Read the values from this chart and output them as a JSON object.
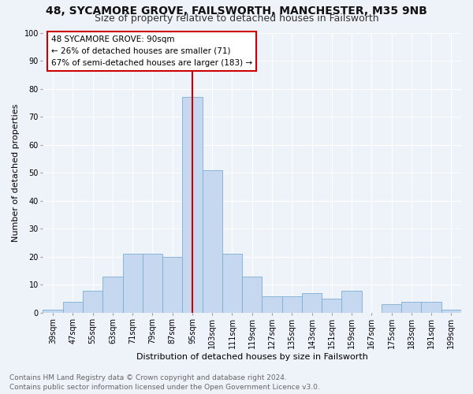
{
  "title1": "48, SYCAMORE GROVE, FAILSWORTH, MANCHESTER, M35 9NB",
  "title2": "Size of property relative to detached houses in Failsworth",
  "xlabel": "Distribution of detached houses by size in Failsworth",
  "ylabel": "Number of detached properties",
  "categories": [
    "39sqm",
    "47sqm",
    "55sqm",
    "63sqm",
    "71sqm",
    "79sqm",
    "87sqm",
    "95sqm",
    "103sqm",
    "111sqm",
    "119sqm",
    "127sqm",
    "135sqm",
    "143sqm",
    "151sqm",
    "159sqm",
    "167sqm",
    "175sqm",
    "183sqm",
    "191sqm",
    "199sqm"
  ],
  "values": [
    1,
    4,
    8,
    13,
    21,
    21,
    20,
    77,
    51,
    21,
    13,
    6,
    6,
    7,
    5,
    8,
    0,
    3,
    4,
    4,
    1
  ],
  "bar_color": "#c5d8ef",
  "bar_edge_color": "#7bafd4",
  "property_line_x": 7.0,
  "annotation_text": "48 SYCAMORE GROVE: 90sqm\n← 26% of detached houses are smaller (71)\n67% of semi-detached houses are larger (183) →",
  "annotation_box_color": "#ffffff",
  "annotation_box_edge": "#cc0000",
  "vline_color": "#cc0000",
  "ylim": [
    0,
    100
  ],
  "yticks": [
    0,
    10,
    20,
    30,
    40,
    50,
    60,
    70,
    80,
    90,
    100
  ],
  "footer1": "Contains HM Land Registry data © Crown copyright and database right 2024.",
  "footer2": "Contains public sector information licensed under the Open Government Licence v3.0.",
  "background_color": "#eef2f9",
  "plot_background": "#eef2f9",
  "grid_color": "#ffffff",
  "title_fontsize": 10,
  "subtitle_fontsize": 9,
  "axis_label_fontsize": 8,
  "tick_fontsize": 7,
  "annotation_fontsize": 7.5,
  "footer_fontsize": 6.5
}
